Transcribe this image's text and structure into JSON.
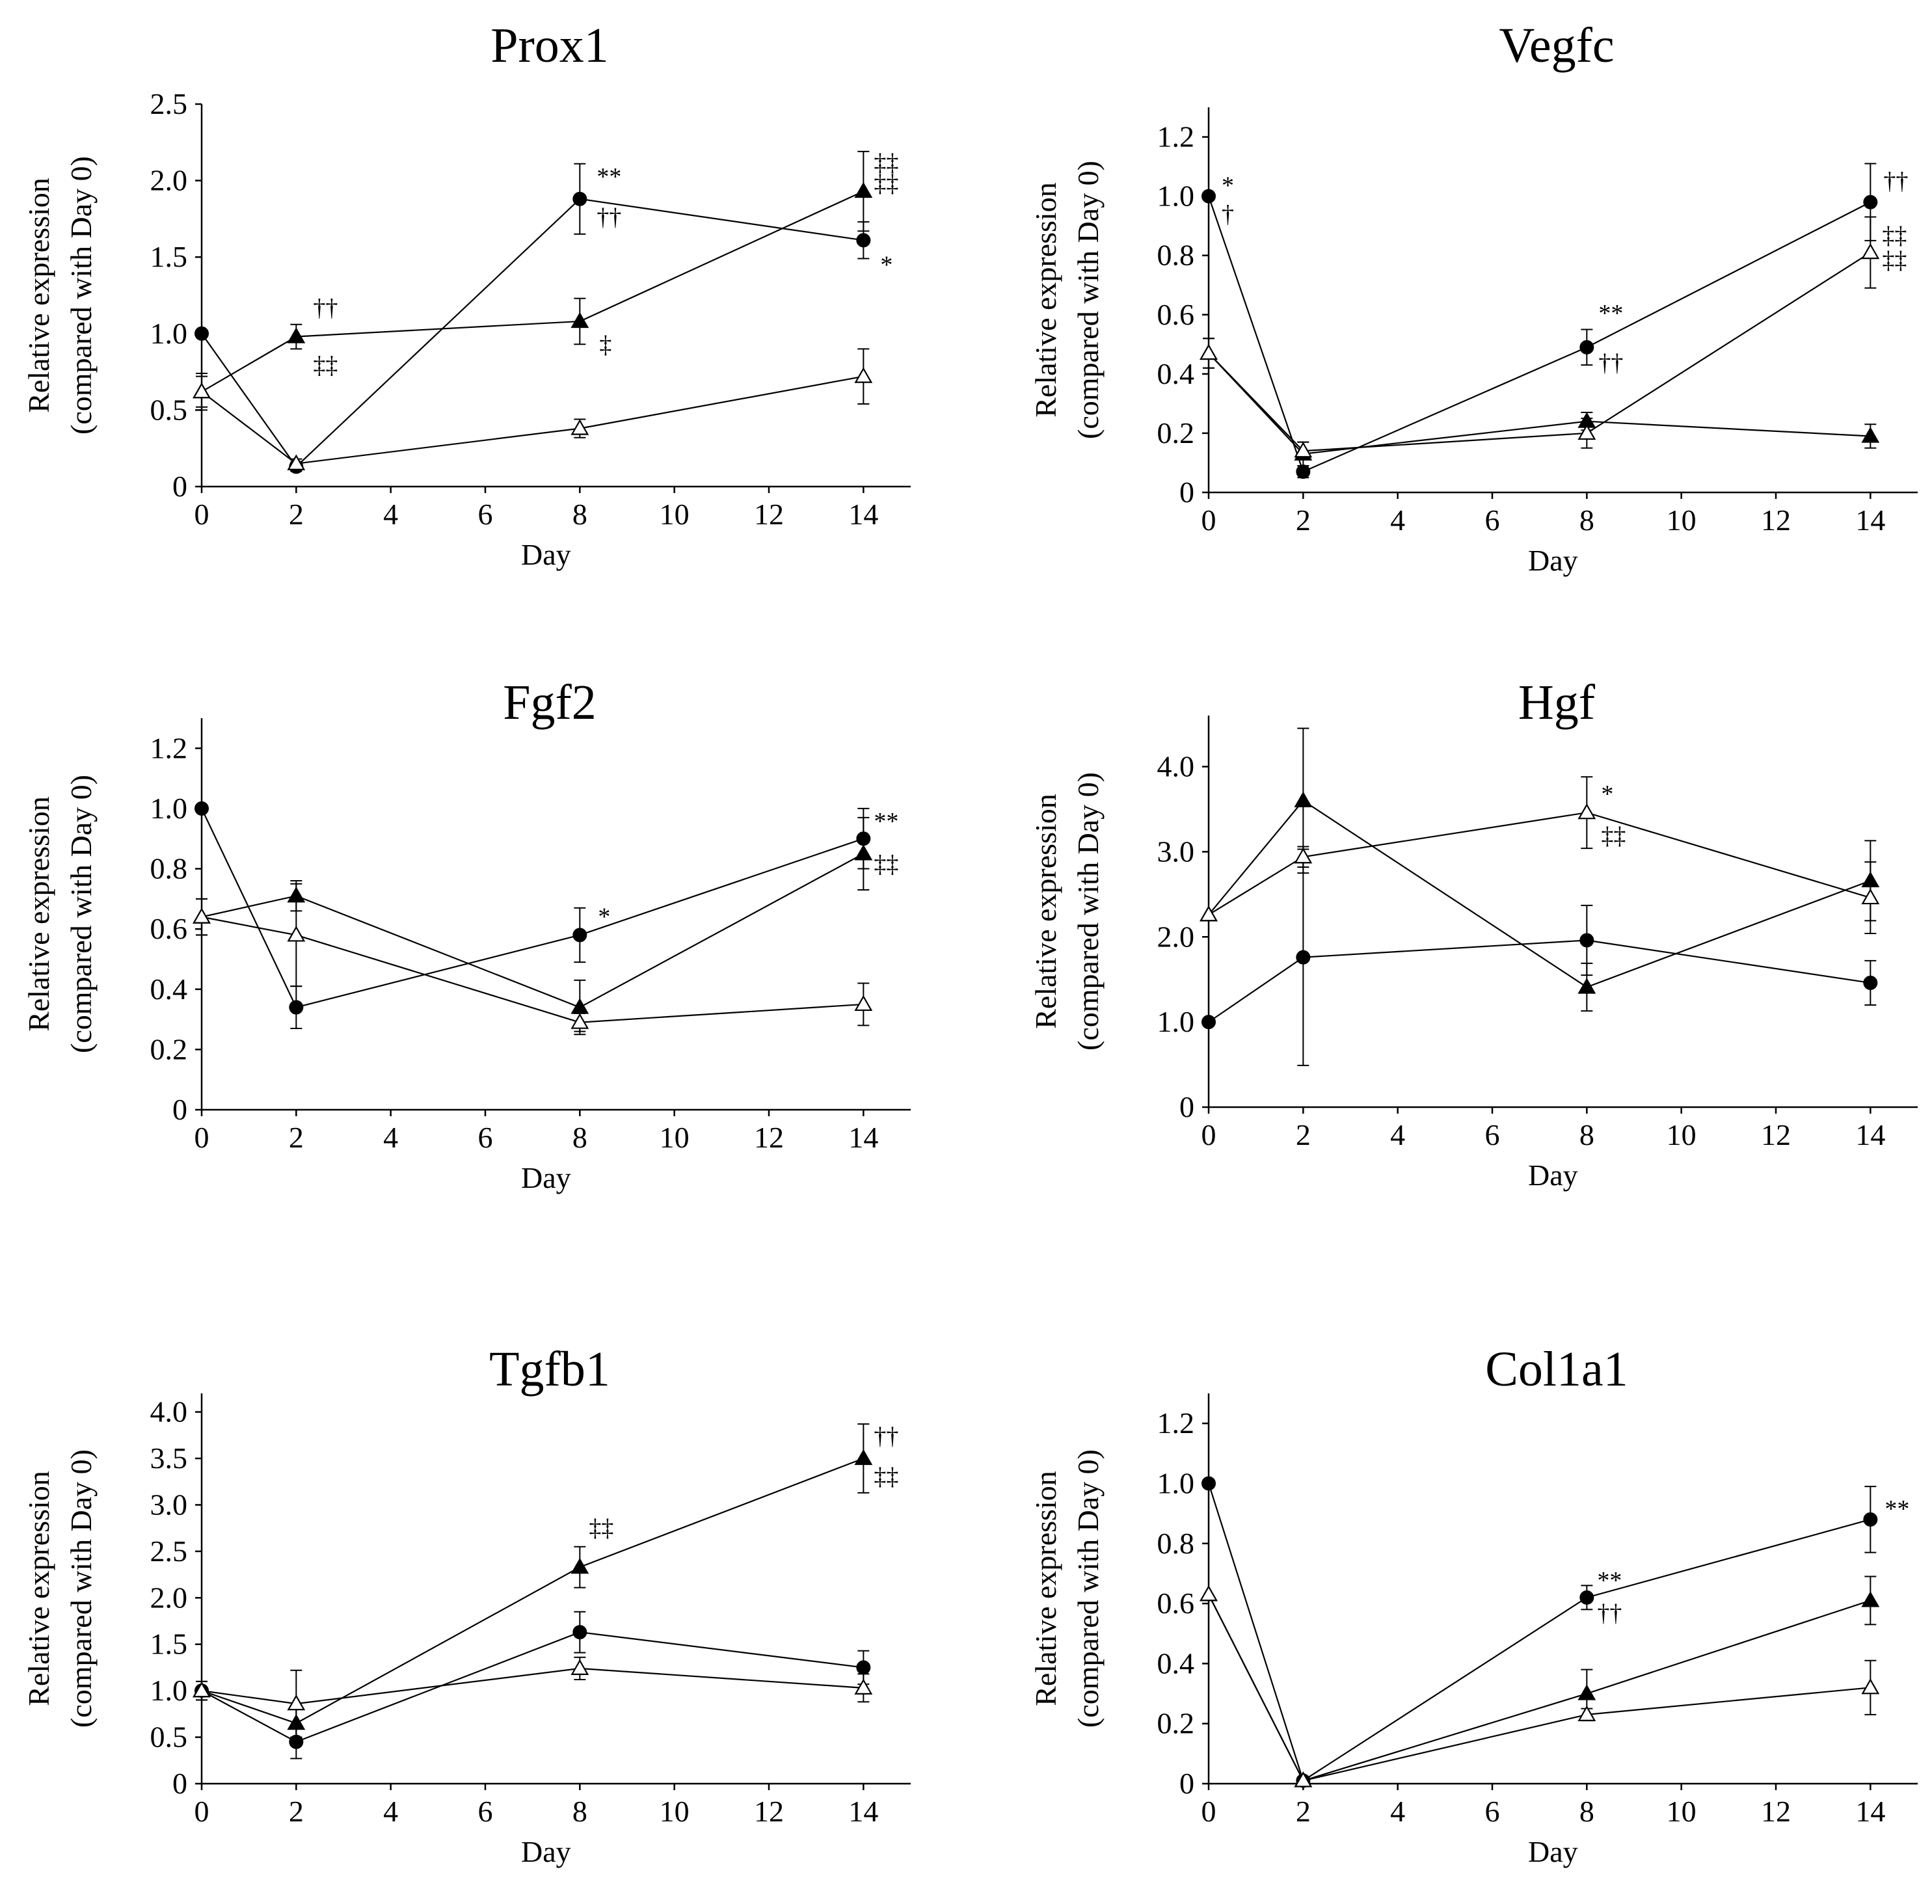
{
  "marker_styles": {
    "filled_circle": "#000000",
    "filled_triangle": "#000000",
    "open_triangle": "#ffffff"
  },
  "chart_data": [
    {
      "type": "line",
      "title": "Prox1",
      "xlabel": "Day",
      "ylabel": [
        "Relative expression",
        "(compared with Day 0)"
      ],
      "xlim": [
        0,
        15
      ],
      "ylim": [
        0,
        2.5
      ],
      "x_ticks": [
        0,
        2,
        4,
        6,
        8,
        10,
        12,
        14
      ],
      "x_tick_labels": [
        "0",
        "2",
        "4",
        "6",
        "8",
        "10",
        "12",
        "14"
      ],
      "y_ticks": [
        0,
        0.5,
        1.0,
        1.5,
        2.0,
        2.5
      ],
      "y_tick_labels": [
        "0",
        "0.5",
        "1.0",
        "1.5",
        "2.0",
        "2.5"
      ],
      "grid": false,
      "x": [
        0,
        2,
        8,
        14
      ],
      "series": [
        {
          "marker": "filled_circle",
          "values": [
            1.0,
            0.13,
            1.88,
            1.61
          ],
          "errors": [
            0.0,
            0.03,
            0.23,
            0.12
          ]
        },
        {
          "marker": "filled_triangle",
          "values": [
            0.62,
            0.98,
            1.08,
            1.93
          ],
          "errors": [
            0.12,
            0.08,
            0.15,
            0.26
          ]
        },
        {
          "marker": "open_triangle",
          "values": [
            0.62,
            0.15,
            0.38,
            0.72
          ],
          "errors": [
            0.1,
            0.03,
            0.06,
            0.18
          ]
        }
      ],
      "annotations": [
        {
          "text": "**",
          "x": 8,
          "y": 1.88
        },
        {
          "text": "††",
          "x": 8,
          "y": 1.88
        },
        {
          "text": "*",
          "x": 14,
          "y": 1.61
        },
        {
          "text": "††",
          "x": 2,
          "y": 0.98
        },
        {
          "text": "‡‡",
          "x": 2,
          "y": 0.98
        },
        {
          "text": "‡",
          "x": 8,
          "y": 1.08
        },
        {
          "text": "‡‡",
          "x": 14,
          "y": 1.93
        },
        {
          "text": "‡‡",
          "x": 14,
          "y": 1.93
        }
      ]
    },
    {
      "type": "line",
      "title": "Vegfc",
      "xlabel": "Day",
      "ylabel": [
        "Relative expression",
        "(compared with Day 0)"
      ],
      "xlim": [
        0,
        15
      ],
      "ylim": [
        0,
        1.3
      ],
      "x_ticks": [
        0,
        2,
        4,
        6,
        8,
        10,
        12,
        14
      ],
      "x_tick_labels": [
        "0",
        "2",
        "4",
        "6",
        "8",
        "10",
        "12",
        "14"
      ],
      "y_ticks": [
        0,
        0.2,
        0.4,
        0.6,
        0.8,
        1.0,
        1.2
      ],
      "y_tick_labels": [
        "0",
        "0.2",
        "0.4",
        "0.6",
        "0.8",
        "1.0",
        "1.2"
      ],
      "grid": false,
      "x": [
        0,
        2,
        8,
        14
      ],
      "series": [
        {
          "marker": "filled_circle",
          "values": [
            1.0,
            0.07,
            0.49,
            0.98
          ],
          "errors": [
            0.0,
            0.02,
            0.06,
            0.13
          ]
        },
        {
          "marker": "filled_triangle",
          "values": [
            0.47,
            0.13,
            0.24,
            0.19
          ],
          "errors": [
            0.05,
            0.04,
            0.03,
            0.04
          ]
        },
        {
          "marker": "open_triangle",
          "values": [
            0.47,
            0.14,
            0.2,
            0.81
          ],
          "errors": [
            0.05,
            0.03,
            0.05,
            0.12
          ]
        }
      ],
      "annotations": [
        {
          "text": "*",
          "x": 0,
          "y": 1.0
        },
        {
          "text": "†",
          "x": 0,
          "y": 1.0
        },
        {
          "text": "**",
          "x": 8,
          "y": 0.49
        },
        {
          "text": "††",
          "x": 8,
          "y": 0.49
        },
        {
          "text": "††",
          "x": 14,
          "y": 0.98
        },
        {
          "text": "‡‡",
          "x": 14,
          "y": 0.81
        },
        {
          "text": "‡‡",
          "x": 14,
          "y": 0.81
        }
      ]
    },
    {
      "type": "line",
      "title": "Fgf2",
      "xlabel": "Day",
      "ylabel": [
        "Relative expression",
        "(compared with Day 0)"
      ],
      "xlim": [
        0,
        15
      ],
      "ylim": [
        0,
        1.3
      ],
      "x_ticks": [
        0,
        2,
        4,
        6,
        8,
        10,
        12,
        14
      ],
      "x_tick_labels": [
        "0",
        "2",
        "4",
        "6",
        "8",
        "10",
        "12",
        "14"
      ],
      "y_ticks": [
        0,
        0.2,
        0.4,
        0.6,
        0.8,
        1.0,
        1.2
      ],
      "y_tick_labels": [
        "0",
        "0.2",
        "0.4",
        "0.6",
        "0.8",
        "1.0",
        "1.2"
      ],
      "grid": false,
      "x": [
        0,
        2,
        8,
        14
      ],
      "series": [
        {
          "marker": "filled_circle",
          "values": [
            1.0,
            0.34,
            0.58,
            0.9
          ],
          "errors": [
            0.0,
            0.07,
            0.09,
            0.1
          ]
        },
        {
          "marker": "filled_triangle",
          "values": [
            0.64,
            0.71,
            0.34,
            0.85
          ],
          "errors": [
            0.06,
            0.05,
            0.09,
            0.12
          ]
        },
        {
          "marker": "open_triangle",
          "values": [
            0.64,
            0.58,
            0.29,
            0.35
          ],
          "errors": [
            0.06,
            0.17,
            0.03,
            0.07
          ]
        }
      ],
      "annotations": [
        {
          "text": "**",
          "x": 14,
          "y": 0.9
        },
        {
          "text": "*",
          "x": 8,
          "y": 0.58
        },
        {
          "text": "‡‡",
          "x": 14,
          "y": 0.85
        }
      ]
    },
    {
      "type": "line",
      "title": "Hgf",
      "xlabel": "Day",
      "ylabel": [
        "Relative expression",
        "(compared with Day 0)"
      ],
      "xlim": [
        0,
        15
      ],
      "ylim": [
        0,
        4.6
      ],
      "x_ticks": [
        0,
        2,
        4,
        6,
        8,
        10,
        12,
        14
      ],
      "x_tick_labels": [
        "0",
        "2",
        "4",
        "6",
        "8",
        "10",
        "12",
        "14"
      ],
      "y_ticks": [
        0,
        1.0,
        2.0,
        3.0,
        4.0
      ],
      "y_tick_labels": [
        "0",
        "1.0",
        "2.0",
        "3.0",
        "4.0"
      ],
      "grid": false,
      "x": [
        0,
        2,
        8,
        14
      ],
      "series": [
        {
          "marker": "filled_circle",
          "values": [
            1.0,
            1.76,
            1.96,
            1.46
          ],
          "errors": [
            0.0,
            1.27,
            0.41,
            0.26
          ]
        },
        {
          "marker": "filled_triangle",
          "values": [
            2.26,
            3.6,
            1.41,
            2.66
          ],
          "errors": [
            0.0,
            0.85,
            0.28,
            0.47
          ]
        },
        {
          "marker": "open_triangle",
          "values": [
            2.26,
            2.94,
            3.46,
            2.46
          ],
          "errors": [
            0.0,
            0.12,
            0.42,
            0.42
          ]
        }
      ],
      "annotations": [
        {
          "text": "*",
          "x": 8,
          "y": 3.46
        },
        {
          "text": "‡‡",
          "x": 8,
          "y": 3.46
        }
      ]
    },
    {
      "type": "line",
      "title": "Tgfb1",
      "xlabel": "Day",
      "ylabel": [
        "Relative expression",
        "(compared with Day 0)"
      ],
      "xlim": [
        0,
        15
      ],
      "ylim": [
        0,
        4.2
      ],
      "x_ticks": [
        0,
        2,
        4,
        6,
        8,
        10,
        12,
        14
      ],
      "x_tick_labels": [
        "0",
        "2",
        "4",
        "6",
        "8",
        "10",
        "12",
        "14"
      ],
      "y_ticks": [
        0,
        0.5,
        1.0,
        1.5,
        2.0,
        2.5,
        3.0,
        3.5,
        4.0
      ],
      "y_tick_labels": [
        "0",
        "0.5",
        "1.0",
        "1.5",
        "2.0",
        "2.5",
        "3.0",
        "3.5",
        "4.0"
      ],
      "grid": false,
      "x": [
        0,
        2,
        8,
        14
      ],
      "series": [
        {
          "marker": "filled_circle",
          "values": [
            1.0,
            0.45,
            1.63,
            1.25
          ],
          "errors": [
            0.0,
            0.18,
            0.22,
            0.18
          ]
        },
        {
          "marker": "filled_triangle",
          "values": [
            1.0,
            0.65,
            2.33,
            3.5
          ],
          "errors": [
            0.1,
            0.15,
            0.22,
            0.37
          ]
        },
        {
          "marker": "open_triangle",
          "values": [
            1.0,
            0.86,
            1.24,
            1.03
          ],
          "errors": [
            0.1,
            0.36,
            0.12,
            0.15
          ]
        }
      ],
      "annotations": [
        {
          "text": "‡‡",
          "x": 8,
          "y": 2.33
        },
        {
          "text": "††",
          "x": 14,
          "y": 3.5
        },
        {
          "text": "‡‡",
          "x": 14,
          "y": 3.5
        }
      ]
    },
    {
      "type": "line",
      "title": "Col1a1",
      "xlabel": "Day",
      "ylabel": [
        "Relative expression",
        "(compared with Day 0)"
      ],
      "xlim": [
        0,
        15
      ],
      "ylim": [
        0,
        1.3
      ],
      "x_ticks": [
        0,
        2,
        4,
        6,
        8,
        10,
        12,
        14
      ],
      "x_tick_labels": [
        "0",
        "2",
        "4",
        "6",
        "8",
        "10",
        "12",
        "14"
      ],
      "y_ticks": [
        0,
        0.2,
        0.4,
        0.6,
        0.8,
        1.0,
        1.2
      ],
      "y_tick_labels": [
        "0",
        "0.2",
        "0.4",
        "0.6",
        "0.8",
        "1.0",
        "1.2"
      ],
      "grid": false,
      "x": [
        0,
        2,
        8,
        14
      ],
      "series": [
        {
          "marker": "filled_circle",
          "values": [
            1.0,
            0.01,
            0.62,
            0.88
          ],
          "errors": [
            0.0,
            0.005,
            0.04,
            0.11
          ]
        },
        {
          "marker": "filled_triangle",
          "values": [
            0.63,
            0.01,
            0.3,
            0.61
          ],
          "errors": [
            0.0,
            0.005,
            0.08,
            0.08
          ]
        },
        {
          "marker": "open_triangle",
          "values": [
            0.63,
            0.01,
            0.23,
            0.32
          ],
          "errors": [
            0.0,
            0.005,
            0.02,
            0.09
          ]
        }
      ],
      "annotations": [
        {
          "text": "**",
          "x": 8,
          "y": 0.62
        },
        {
          "text": "††",
          "x": 8,
          "y": 0.62
        },
        {
          "text": "**",
          "x": 14,
          "y": 0.88
        }
      ]
    }
  ]
}
